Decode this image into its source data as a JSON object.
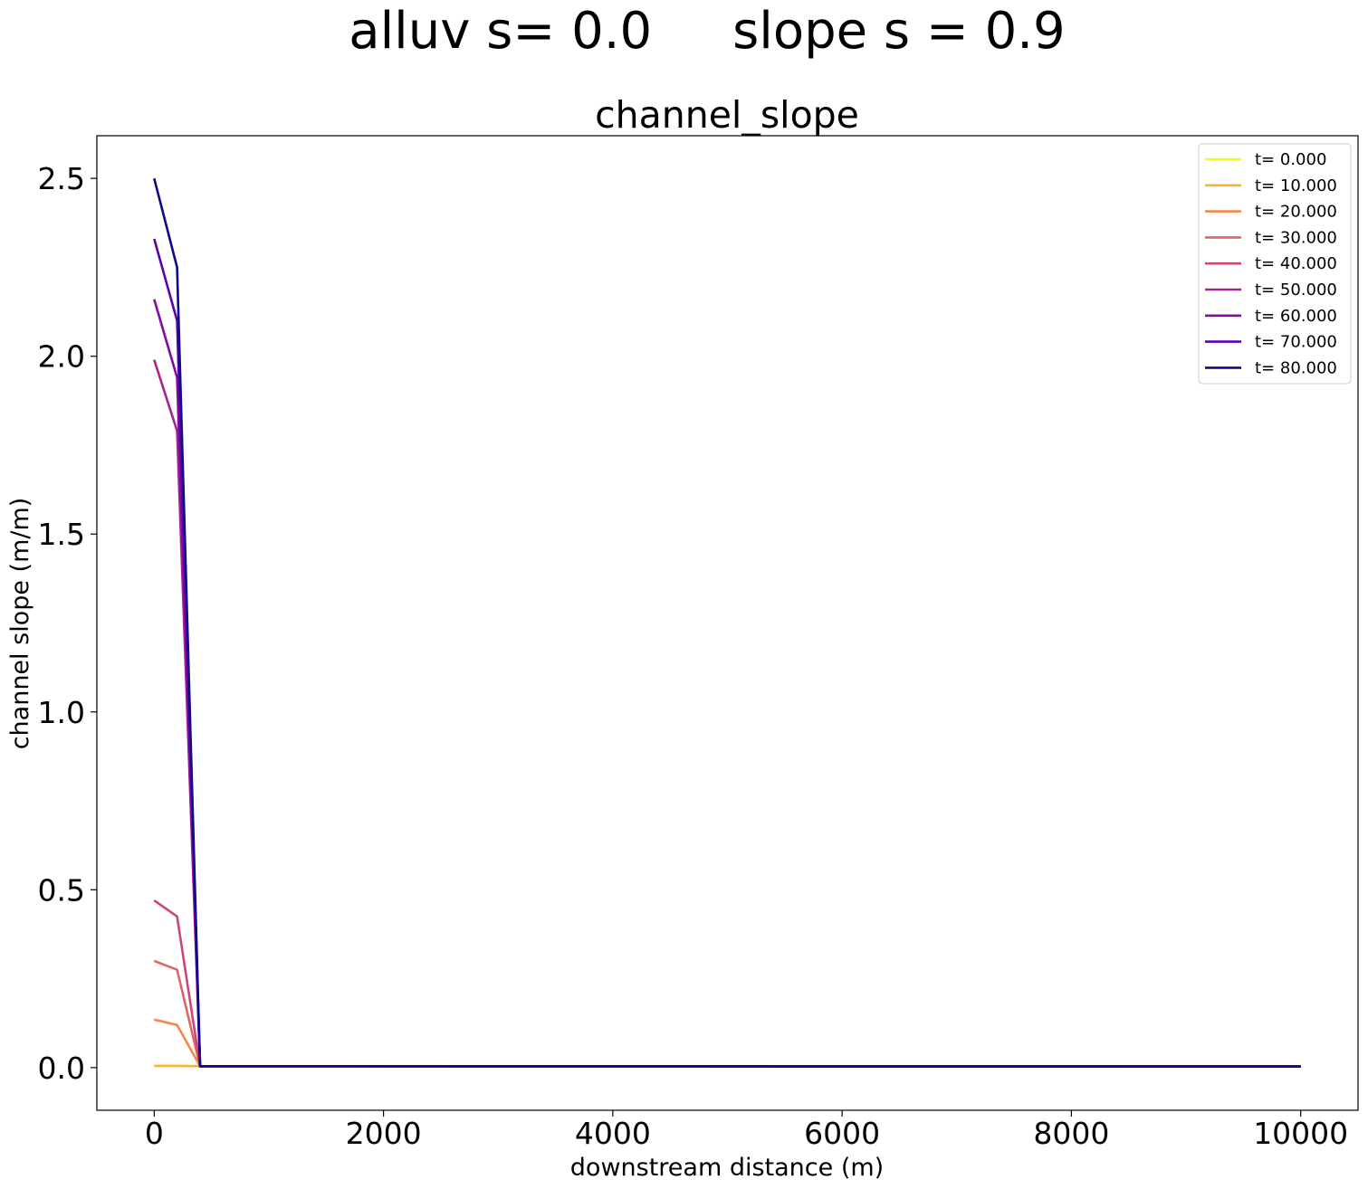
{
  "figure": {
    "suptitle": "alluv s= 0.0     slope s = 0.9"
  },
  "chart_data": {
    "type": "line",
    "title": "channel_slope",
    "xlabel": "downstream distance (m)",
    "ylabel": "channel slope (m/m)",
    "xlim": [
      -500,
      10500
    ],
    "ylim": [
      -0.12,
      2.62
    ],
    "xticks": [
      0,
      2000,
      4000,
      6000,
      8000,
      10000
    ],
    "xtick_labels": [
      "0",
      "2000",
      "4000",
      "6000",
      "8000",
      "10000"
    ],
    "yticks": [
      0.0,
      0.5,
      1.0,
      1.5,
      2.0,
      2.5
    ],
    "ytick_labels": [
      "0.0",
      "0.5",
      "1.0",
      "1.5",
      "2.0",
      "2.5"
    ],
    "grid": false,
    "legend_position": "top-right",
    "x": [
      0,
      200,
      400,
      10000
    ],
    "series": [
      {
        "name": "t= 0.000",
        "color": "#f0f921",
        "values": [
          0.005,
          0.005,
          0.004,
          0.004
        ]
      },
      {
        "name": "t= 10.000",
        "color": "#fbb32f",
        "values": [
          0.005,
          0.005,
          0.004,
          0.004
        ]
      },
      {
        "name": "t= 20.000",
        "color": "#f48849",
        "values": [
          0.135,
          0.12,
          0.004,
          0.004
        ]
      },
      {
        "name": "t= 30.000",
        "color": "#e16462",
        "values": [
          0.3,
          0.275,
          0.004,
          0.004
        ]
      },
      {
        "name": "t= 40.000",
        "color": "#cb4779",
        "values": [
          0.47,
          0.425,
          0.004,
          0.004
        ]
      },
      {
        "name": "t= 50.000",
        "color": "#a82296",
        "values": [
          1.99,
          1.79,
          0.004,
          0.004
        ]
      },
      {
        "name": "t= 60.000",
        "color": "#8606a6",
        "values": [
          2.16,
          1.94,
          0.004,
          0.004
        ]
      },
      {
        "name": "t= 70.000",
        "color": "#5c01a6",
        "values": [
          2.33,
          2.1,
          0.004,
          0.003
        ]
      },
      {
        "name": "t= 80.000",
        "color": "#0d0887",
        "values": [
          2.5,
          2.25,
          0.004,
          0.003
        ]
      }
    ]
  }
}
